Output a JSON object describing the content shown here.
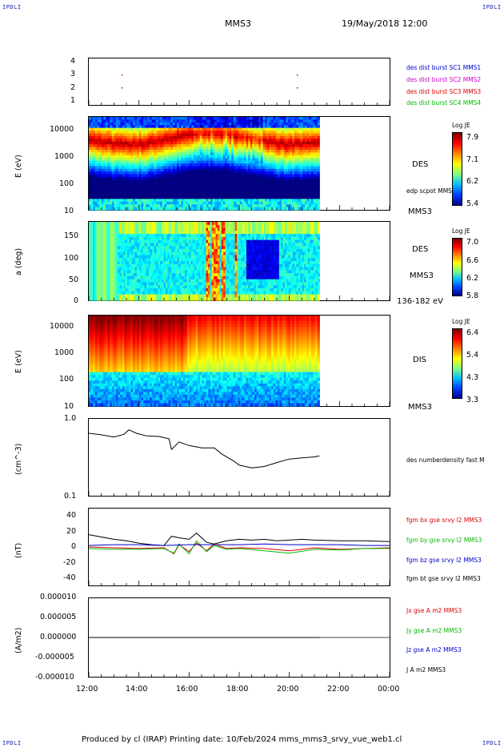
{
  "corners": {
    "tl": "IPDLI",
    "tr": "IPDLI",
    "bl": "IPDLI",
    "br": "IPDLI"
  },
  "header": {
    "spacecraft": "MMS3",
    "datetime": "19/May/2018 12:00"
  },
  "footer": "Produced by cl (IRAP)   Printing date: 10/Feb/2024   mms_mms3_srvy_vue_web1.cl",
  "colors": {
    "red": "#dd0000",
    "green": "#00bb00",
    "blue": "#0000cc",
    "magenta": "#cc00cc",
    "black": "#000000"
  },
  "chart_data": {
    "type": "multi-panel time series",
    "x_tick_labels": [
      "12:00",
      "14:00",
      "16:00",
      "18:00",
      "20:00",
      "22:00",
      "00:00"
    ],
    "x_range_hours": [
      12,
      24
    ],
    "data_end_hour": 21.2,
    "panels": [
      {
        "name": "burst",
        "y_ticks": [
          "4",
          "3",
          "2",
          "1"
        ],
        "legend": [
          {
            "text": "des dist burst SC1 MMS1",
            "color": "#0000cc"
          },
          {
            "text": "des dist burst SC2 MMS2",
            "color": "#cc00cc"
          },
          {
            "text": "des dist burst SC3 MMS3",
            "color": "#dd0000"
          },
          {
            "text": "des dist burst SC4 MMS4",
            "color": "#00bb00"
          }
        ],
        "marks_hours": [
          13.3,
          20.3
        ]
      },
      {
        "name": "des-energy",
        "ylabel": "E (eV)",
        "y_ticks": [
          "10000",
          "1000",
          "100",
          "10"
        ],
        "right_labels": [
          "DES",
          "edp scpot MMS3",
          "MMS3"
        ],
        "colorbar": {
          "title": "Log JE",
          "ticks": [
            "7.9",
            "7.1",
            "6.2",
            "5.4"
          ]
        }
      },
      {
        "name": "des-pitch",
        "ylabel": "a (deg)",
        "y_ticks": [
          "150",
          "100",
          "50",
          "0"
        ],
        "right_labels": [
          "DES",
          "MMS3",
          "136-182 eV"
        ],
        "colorbar": {
          "title": "Log JE",
          "ticks": [
            "7.0",
            "6.6",
            "6.2",
            "5.8"
          ]
        }
      },
      {
        "name": "dis-energy",
        "ylabel": "E (eV)",
        "y_ticks": [
          "10000",
          "1000",
          "100",
          "10"
        ],
        "right_labels": [
          "DIS",
          "MMS3"
        ],
        "colorbar": {
          "title": "Log JE",
          "ticks": [
            "6.4",
            "5.4",
            "4.3",
            "3.3"
          ]
        }
      },
      {
        "name": "density",
        "ylabel": "(cm^-3)",
        "y_ticks": [
          "1.0",
          "0.1"
        ],
        "legend": [
          {
            "text": "des numberdensity fast M",
            "color": "#000000"
          }
        ],
        "series": [
          {
            "x_hours": [
              12.0,
              12.5,
              13.0,
              13.4,
              13.6,
              13.9,
              14.3,
              14.8,
              15.2,
              15.3,
              15.6,
              16.0,
              16.5,
              17.0,
              17.3,
              17.8,
              18.0,
              18.5,
              19.0,
              19.5,
              20.0,
              20.5,
              21.0,
              21.2
            ],
            "y": [
              0.65,
              0.62,
              0.58,
              0.63,
              0.72,
              0.65,
              0.6,
              0.59,
              0.55,
              0.4,
              0.5,
              0.45,
              0.42,
              0.42,
              0.35,
              0.28,
              0.25,
              0.23,
              0.24,
              0.27,
              0.3,
              0.31,
              0.32,
              0.33
            ]
          }
        ]
      },
      {
        "name": "magnetic-field",
        "ylabel": "(nT)",
        "y_ticks": [
          "40",
          "20",
          "0",
          "-20",
          "-40"
        ],
        "ylim": [
          -50,
          50
        ],
        "legend": [
          {
            "text": "fgm bx gse srvy l2 MMS3",
            "color": "#dd0000"
          },
          {
            "text": "fgm by gse srvy l2 MMS3",
            "color": "#00bb00"
          },
          {
            "text": "fgm bz gse srvy l2 MMS3",
            "color": "#0000cc"
          },
          {
            "text": "fgm bt gse srvy l2 MMS3",
            "color": "#000000"
          }
        ],
        "series": [
          {
            "name": "bt",
            "x_hours": [
              12.0,
              12.5,
              13.0,
              13.5,
              14.0,
              14.5,
              15.0,
              15.3,
              15.6,
              16.0,
              16.3,
              16.7,
              17.0,
              17.5,
              18.0,
              18.5,
              19.0,
              19.5,
              20.0,
              20.5,
              21.0,
              22.0,
              23.0,
              24.0
            ],
            "y": [
              16,
              13,
              10,
              8,
              5,
              3,
              2,
              14,
              12,
              10,
              18,
              6,
              4,
              8,
              10,
              9,
              10,
              8,
              9,
              10,
              9,
              8,
              8,
              7
            ]
          },
          {
            "name": "bx",
            "x_hours": [
              12.0,
              13.0,
              14.0,
              15.0,
              15.4,
              15.6,
              16.0,
              16.3,
              16.7,
              17.0,
              17.5,
              18.0,
              19.0,
              20.0,
              21.0,
              22.0,
              23.0,
              24.0
            ],
            "y": [
              0,
              -1,
              -2,
              -1,
              -9,
              3,
              -6,
              5,
              -5,
              4,
              -2,
              -1,
              -2,
              -5,
              -1,
              -3,
              -2,
              -1
            ]
          },
          {
            "name": "by",
            "x_hours": [
              12.0,
              13.0,
              14.0,
              15.0,
              15.4,
              15.6,
              16.0,
              16.3,
              16.7,
              17.0,
              17.5,
              18.0,
              19.0,
              20.0,
              21.0,
              22.0,
              23.0,
              24.0
            ],
            "y": [
              -2,
              -3,
              -3,
              -2,
              -8,
              4,
              -9,
              8,
              -6,
              2,
              -3,
              -2,
              -5,
              -8,
              -3,
              -4,
              -2,
              -2
            ]
          },
          {
            "name": "bz",
            "x_hours": [
              12.0,
              13.0,
              14.0,
              15.0,
              16.0,
              17.0,
              18.0,
              19.0,
              20.0,
              21.0,
              22.0,
              23.0,
              24.0
            ],
            "y": [
              2,
              3,
              3,
              2,
              3,
              3,
              3,
              4,
              3,
              3,
              3,
              2,
              2
            ]
          }
        ]
      },
      {
        "name": "current-density",
        "ylabel": "(A/m2)",
        "y_ticks": [
          "0.000010",
          "0.000005",
          "0.000000",
          "-0.000005",
          "-0.000010"
        ],
        "ylim": [
          -1e-05,
          1e-05
        ],
        "legend": [
          {
            "text": "Jx gse A m2 MMS3",
            "color": "#dd0000"
          },
          {
            "text": "Jy gse A m2 MMS3",
            "color": "#00bb00"
          },
          {
            "text": "Jz gse A m2 MMS3",
            "color": "#0000cc"
          },
          {
            "text": "J A m2 MMS3",
            "color": "#000000"
          }
        ],
        "series": [
          {
            "name": "J",
            "x_hours": [
              12.0,
              14.0,
              16.0,
              18.0,
              20.0,
              21.2
            ],
            "y": [
              0,
              0,
              0,
              0,
              0,
              0
            ]
          }
        ]
      }
    ]
  }
}
